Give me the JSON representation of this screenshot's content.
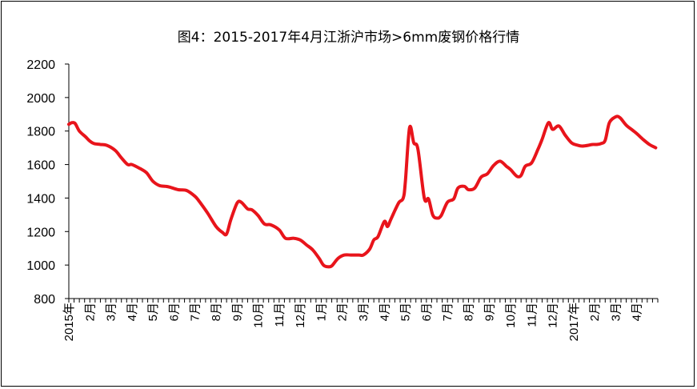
{
  "chart_data": {
    "type": "line",
    "title": "图4：2015-2017年4月江浙沪市场>6mm废钢价格行情",
    "xlabel": "",
    "ylabel": "",
    "ylim": [
      800,
      2200
    ],
    "yticks": [
      800,
      1000,
      1200,
      1400,
      1600,
      1800,
      2000,
      2200
    ],
    "xlim": [
      0,
      28
    ],
    "x_tick_labels": [
      "2015年",
      "2月",
      "3月",
      "4月",
      "5月",
      "6月",
      "7月",
      "8月",
      "9月",
      "10月",
      "11月",
      "12月",
      "1月",
      "2月",
      "3月",
      "4月",
      "5月",
      "6月",
      "7月",
      "8月",
      "9月",
      "10月",
      "11月",
      "12月",
      "2017年",
      "2月",
      "3月",
      "4月"
    ],
    "grid": false,
    "legend": "none",
    "colors": {
      "line": "#e8141b"
    },
    "series": [
      {
        "name": "",
        "x": [
          0,
          0.15,
          0.3,
          0.5,
          0.8,
          1.0,
          1.2,
          1.5,
          1.8,
          2.2,
          2.5,
          2.8,
          3.0,
          3.4,
          3.7,
          4.0,
          4.3,
          4.6,
          4.8,
          5.2,
          5.6,
          6.0,
          6.2,
          6.6,
          7.0,
          7.3,
          7.5,
          7.7,
          8.0,
          8.2,
          8.5,
          8.7,
          9.0,
          9.3,
          9.6,
          10.0,
          10.3,
          10.7,
          11.0,
          11.3,
          11.6,
          11.9,
          12.1,
          12.3,
          12.5,
          12.8,
          13.1,
          13.4,
          13.8,
          14.0,
          14.3,
          14.5,
          14.7,
          15.0,
          15.15,
          15.3,
          15.5,
          15.7,
          15.9,
          16.0,
          16.2,
          16.4,
          16.6,
          16.9,
          17.1,
          17.3,
          17.5,
          17.7,
          18.0,
          18.3,
          18.5,
          18.8,
          19.0,
          19.3,
          19.6,
          19.9,
          20.2,
          20.5,
          20.8,
          21.0,
          21.3,
          21.5,
          21.7,
          22.0,
          22.3,
          22.5,
          22.8,
          23.0,
          23.3,
          23.6,
          23.9,
          24.2,
          24.4,
          24.7,
          24.9,
          25.1,
          25.3,
          25.5,
          25.7,
          26.0,
          26.2,
          26.5,
          26.8,
          27.0,
          27.3,
          27.6,
          27.9
        ],
        "values": [
          1840,
          1850,
          1845,
          1800,
          1765,
          1740,
          1725,
          1720,
          1715,
          1685,
          1640,
          1600,
          1600,
          1575,
          1550,
          1500,
          1475,
          1470,
          1465,
          1450,
          1445,
          1410,
          1380,
          1310,
          1230,
          1195,
          1185,
          1270,
          1370,
          1375,
          1335,
          1330,
          1295,
          1245,
          1240,
          1210,
          1160,
          1160,
          1150,
          1120,
          1090,
          1040,
          1000,
          990,
          995,
          1040,
          1060,
          1060,
          1060,
          1060,
          1095,
          1150,
          1170,
          1260,
          1230,
          1270,
          1325,
          1375,
          1400,
          1500,
          1820,
          1730,
          1690,
          1400,
          1395,
          1300,
          1280,
          1295,
          1375,
          1395,
          1460,
          1470,
          1450,
          1460,
          1525,
          1545,
          1595,
          1620,
          1590,
          1570,
          1530,
          1535,
          1590,
          1610,
          1690,
          1750,
          1850,
          1810,
          1830,
          1775,
          1730,
          1715,
          1710,
          1715,
          1720,
          1720,
          1725,
          1745,
          1850,
          1885,
          1880,
          1835,
          1805,
          1785,
          1750,
          1720,
          1700
        ]
      }
    ]
  }
}
